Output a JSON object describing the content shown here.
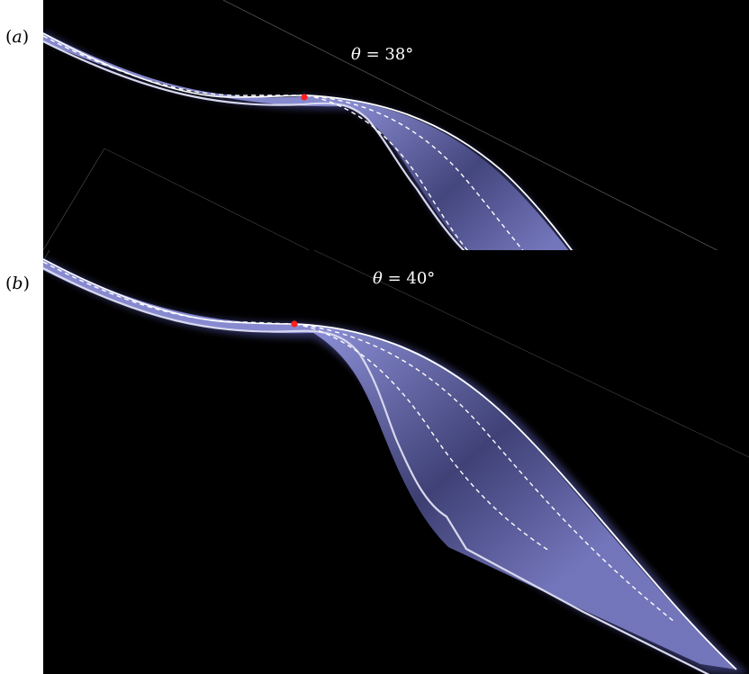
{
  "figure": {
    "panels": [
      {
        "id": "a",
        "label_open": "(",
        "label_letter": "a",
        "label_close": ")",
        "angle_symbol": "θ",
        "angle_text": " = 38°"
      },
      {
        "id": "b",
        "label_open": "(",
        "label_letter": "b",
        "label_close": ")",
        "angle_symbol": "θ",
        "angle_text": " = 40°"
      }
    ],
    "colors": {
      "background": "#000000",
      "flow": "#7c7fc8",
      "flow_edge": "#c8c8ea",
      "solid_line": "#ffffff",
      "dashed_line": "#ffffff",
      "marker": "#ff2020",
      "frame": "#5a5a5a"
    }
  }
}
